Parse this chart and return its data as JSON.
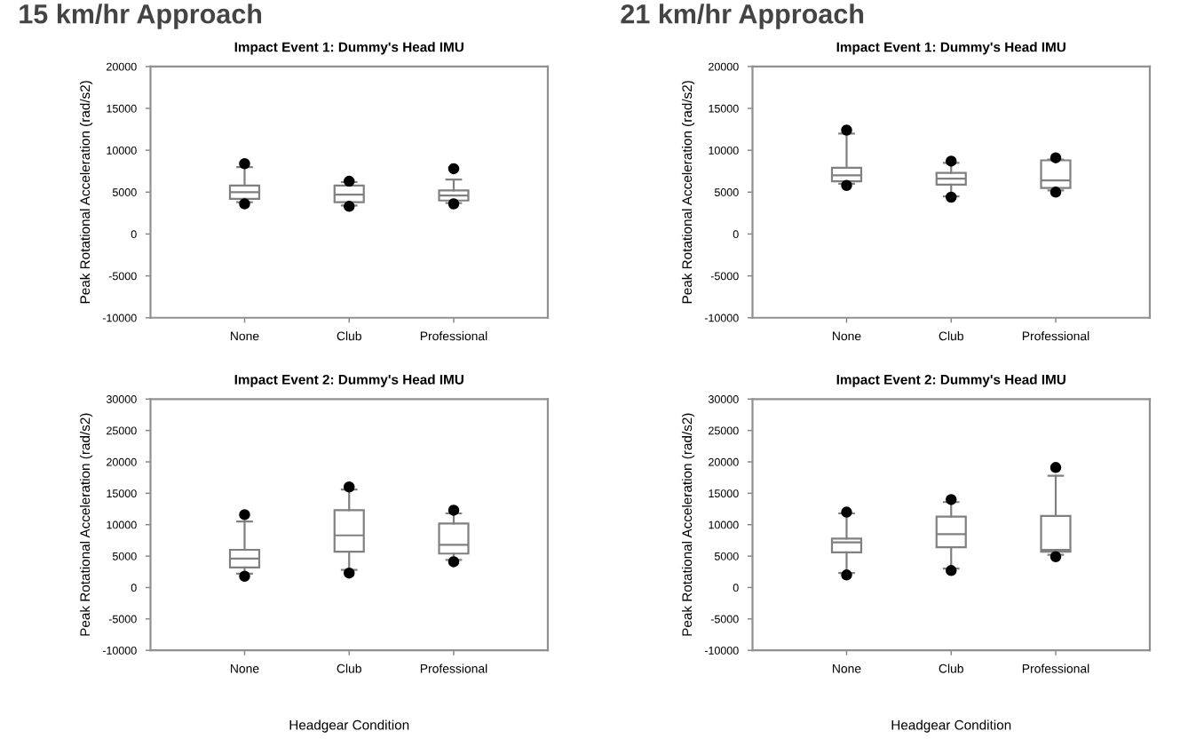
{
  "chart_data": [
    {
      "type": "box",
      "title": "Impact Event 1: Dummy's Head IMU",
      "ylabel": "Peak Rotational Acceleration (rad/s2)",
      "annotations": [
        "15 km/hr Approach"
      ],
      "categories": [
        "None",
        "Club",
        "Professional"
      ],
      "ylim": [
        -10000,
        20000
      ],
      "yticks": [
        -10000,
        -5000,
        0,
        5000,
        10000,
        15000,
        20000
      ],
      "color": "#808080",
      "grid": false,
      "boxes": [
        {
          "low": 3800,
          "q1": 4200,
          "median": 5000,
          "q3": 5800,
          "high": 8000,
          "outliers": [
            8400,
            3600
          ]
        },
        {
          "low": 3400,
          "q1": 3800,
          "median": 4700,
          "q3": 5800,
          "high": 6200,
          "outliers": [
            6300,
            3300
          ]
        },
        {
          "low": 3700,
          "q1": 4000,
          "median": 4600,
          "q3": 5200,
          "high": 6500,
          "outliers": [
            7800,
            3600
          ]
        }
      ]
    },
    {
      "type": "box",
      "title": "Impact Event 1: Dummy's Head IMU",
      "ylabel": "Peak Rotational Acceleration (rad/s2)",
      "annotations": [
        "21 km/hr Approach"
      ],
      "categories": [
        "None",
        "Club",
        "Professional"
      ],
      "ylim": [
        -10000,
        20000
      ],
      "yticks": [
        -10000,
        -5000,
        0,
        5000,
        10000,
        15000,
        20000
      ],
      "color": "#808080",
      "grid": false,
      "boxes": [
        {
          "low": 6000,
          "q1": 6300,
          "median": 7000,
          "q3": 7900,
          "high": 12000,
          "outliers": [
            12400,
            5800
          ]
        },
        {
          "low": 4500,
          "q1": 5900,
          "median": 6600,
          "q3": 7300,
          "high": 8500,
          "outliers": [
            8700,
            4400
          ]
        },
        {
          "low": 5200,
          "q1": 5500,
          "median": 6400,
          "q3": 8800,
          "high": 8900,
          "outliers": [
            9100,
            5000
          ]
        }
      ]
    },
    {
      "type": "box",
      "title": "Impact Event 2: Dummy's Head IMU",
      "ylabel": "Peak Rotational Acceleration (rad/s2)",
      "xlabel": "Headgear Condition",
      "categories": [
        "None",
        "Club",
        "Professional"
      ],
      "ylim": [
        -10000,
        30000
      ],
      "yticks": [
        -10000,
        -5000,
        0,
        5000,
        10000,
        15000,
        20000,
        25000,
        30000
      ],
      "color": "#808080",
      "grid": false,
      "boxes": [
        {
          "low": 2200,
          "q1": 3200,
          "median": 4600,
          "q3": 6000,
          "high": 10500,
          "outliers": [
            11600,
            1800
          ]
        },
        {
          "low": 2800,
          "q1": 5700,
          "median": 8300,
          "q3": 12300,
          "high": 15600,
          "outliers": [
            16000,
            2300
          ]
        },
        {
          "low": 4400,
          "q1": 5400,
          "median": 6800,
          "q3": 10200,
          "high": 11800,
          "outliers": [
            12300,
            4100
          ]
        }
      ]
    },
    {
      "type": "box",
      "title": "Impact Event 2: Dummy's Head IMU",
      "ylabel": "Peak Rotational Acceleration (rad/s2)",
      "xlabel": "Headgear Condition",
      "categories": [
        "None",
        "Club",
        "Professional"
      ],
      "ylim": [
        -10000,
        30000
      ],
      "yticks": [
        -10000,
        -5000,
        0,
        5000,
        10000,
        15000,
        20000,
        25000,
        30000
      ],
      "color": "#808080",
      "grid": false,
      "boxes": [
        {
          "low": 2300,
          "q1": 5600,
          "median": 7200,
          "q3": 7800,
          "high": 11800,
          "outliers": [
            12000,
            2000
          ]
        },
        {
          "low": 3000,
          "q1": 6400,
          "median": 8500,
          "q3": 11300,
          "high": 13600,
          "outliers": [
            14000,
            2700
          ]
        },
        {
          "low": 5200,
          "q1": 5700,
          "median": 6000,
          "q3": 11400,
          "high": 17800,
          "outliers": [
            19100,
            4900
          ]
        }
      ]
    }
  ]
}
